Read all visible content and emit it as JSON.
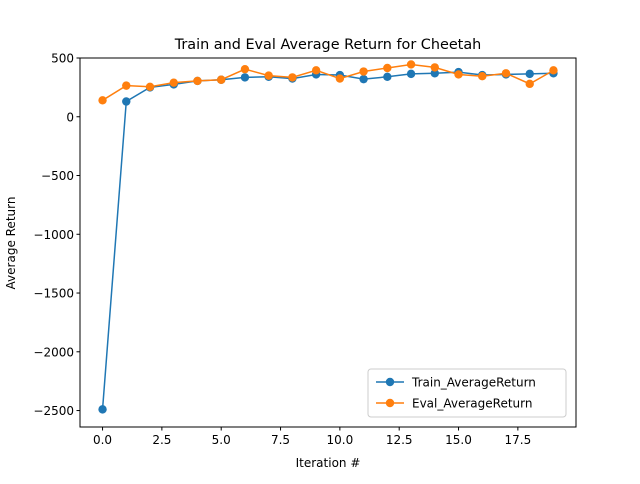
{
  "chart_data": {
    "type": "line",
    "title": "Train and Eval Average Return for Cheetah",
    "xlabel": "Iteration #",
    "ylabel": "Average Return",
    "xlim": [
      -0.95,
      19.95
    ],
    "ylim": [
      -2640,
      500
    ],
    "xticks": [
      0.0,
      2.5,
      5.0,
      7.5,
      10.0,
      12.5,
      15.0,
      17.5
    ],
    "xtick_labels": [
      "0.0",
      "2.5",
      "5.0",
      "7.5",
      "10.0",
      "12.5",
      "15.0",
      "17.5"
    ],
    "yticks": [
      500,
      0,
      -500,
      -1000,
      -1500,
      -2000,
      -2500
    ],
    "ytick_labels": [
      "500",
      "0",
      "−500",
      "−1000",
      "−1500",
      "−2000",
      "−2500"
    ],
    "grid": false,
    "legend_position": "lower right",
    "x": [
      0,
      1,
      2,
      3,
      4,
      5,
      6,
      7,
      8,
      9,
      10,
      11,
      12,
      13,
      14,
      15,
      16,
      17,
      18,
      19
    ],
    "series": [
      {
        "name": "Train_AverageReturn",
        "color": "#1f77b4",
        "marker": "circle",
        "values": [
          -2490,
          130,
          250,
          275,
          305,
          315,
          335,
          340,
          325,
          360,
          355,
          320,
          340,
          365,
          370,
          380,
          355,
          360,
          365,
          370
        ]
      },
      {
        "name": "Eval_AverageReturn",
        "color": "#ff7f0e",
        "marker": "circle",
        "values": [
          140,
          265,
          255,
          290,
          305,
          315,
          405,
          350,
          335,
          395,
          325,
          385,
          415,
          445,
          420,
          360,
          345,
          370,
          280,
          395
        ]
      }
    ]
  }
}
